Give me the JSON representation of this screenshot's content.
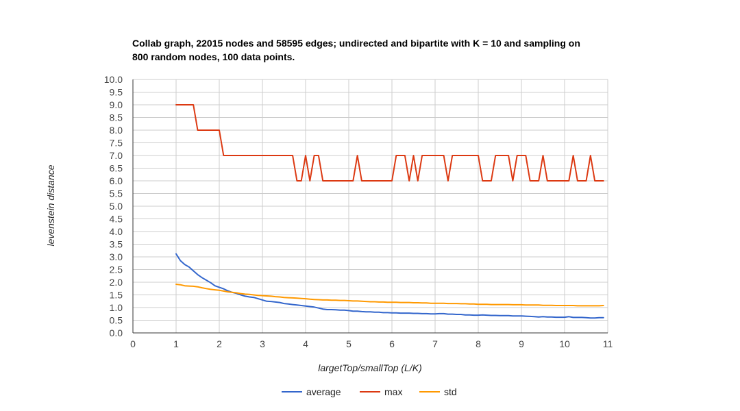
{
  "chart_data": {
    "type": "line",
    "title_lines": [
      "Collab graph, 22015 nodes and 58595 edges; undirected and bipartite with K = 10 and sampling on",
      "800 random nodes, 100 data points."
    ],
    "xlabel": "largetTop/smallTop (L/K)",
    "ylabel": "levenstein distance",
    "xlim": [
      0,
      11
    ],
    "ylim": [
      0,
      10
    ],
    "x_ticks": [
      "0",
      "1",
      "2",
      "3",
      "4",
      "5",
      "6",
      "7",
      "8",
      "9",
      "10",
      "11"
    ],
    "y_ticks": [
      "0.0",
      "0.5",
      "1.0",
      "1.5",
      "2.0",
      "2.5",
      "3.0",
      "3.5",
      "4.0",
      "4.5",
      "5.0",
      "5.5",
      "6.0",
      "6.5",
      "7.0",
      "7.5",
      "8.0",
      "8.5",
      "9.0",
      "9.5",
      "10.0"
    ],
    "grid": true,
    "legend_position": "bottom",
    "x": [
      1.0,
      1.1,
      1.2,
      1.3,
      1.4,
      1.5,
      1.6,
      1.7,
      1.8,
      1.9,
      2.0,
      2.1,
      2.2,
      2.3,
      2.4,
      2.5,
      2.6,
      2.7,
      2.8,
      2.9,
      3.0,
      3.1,
      3.2,
      3.3,
      3.4,
      3.5,
      3.6,
      3.7,
      3.8,
      3.9,
      4.0,
      4.1,
      4.2,
      4.3,
      4.4,
      4.5,
      4.6,
      4.7,
      4.8,
      4.9,
      5.0,
      5.1,
      5.2,
      5.3,
      5.4,
      5.5,
      5.6,
      5.7,
      5.8,
      5.9,
      6.0,
      6.1,
      6.2,
      6.3,
      6.4,
      6.5,
      6.6,
      6.7,
      6.8,
      6.9,
      7.0,
      7.1,
      7.2,
      7.3,
      7.4,
      7.5,
      7.6,
      7.7,
      7.8,
      7.9,
      8.0,
      8.1,
      8.2,
      8.3,
      8.4,
      8.5,
      8.6,
      8.7,
      8.8,
      8.9,
      9.0,
      9.1,
      9.2,
      9.3,
      9.4,
      9.5,
      9.6,
      9.7,
      9.8,
      9.9,
      10.0,
      10.1,
      10.2,
      10.3,
      10.4,
      10.5,
      10.6,
      10.7,
      10.8,
      10.9
    ],
    "series": [
      {
        "name": "average",
        "color": "#3366cc",
        "values": [
          3.12,
          2.85,
          2.7,
          2.6,
          2.45,
          2.3,
          2.18,
          2.08,
          1.98,
          1.86,
          1.8,
          1.74,
          1.66,
          1.6,
          1.56,
          1.5,
          1.45,
          1.42,
          1.4,
          1.35,
          1.3,
          1.25,
          1.24,
          1.22,
          1.2,
          1.16,
          1.14,
          1.12,
          1.1,
          1.08,
          1.06,
          1.04,
          1.02,
          0.98,
          0.94,
          0.92,
          0.92,
          0.91,
          0.9,
          0.9,
          0.88,
          0.86,
          0.86,
          0.84,
          0.83,
          0.83,
          0.82,
          0.82,
          0.8,
          0.8,
          0.79,
          0.79,
          0.78,
          0.78,
          0.78,
          0.77,
          0.77,
          0.76,
          0.76,
          0.75,
          0.75,
          0.76,
          0.76,
          0.74,
          0.74,
          0.73,
          0.73,
          0.71,
          0.71,
          0.7,
          0.7,
          0.71,
          0.7,
          0.69,
          0.69,
          0.68,
          0.68,
          0.68,
          0.67,
          0.67,
          0.67,
          0.66,
          0.65,
          0.64,
          0.63,
          0.64,
          0.63,
          0.63,
          0.62,
          0.62,
          0.62,
          0.64,
          0.61,
          0.61,
          0.61,
          0.6,
          0.59,
          0.59,
          0.6,
          0.6
        ]
      },
      {
        "name": "max",
        "color": "#dc3912",
        "values": [
          9,
          9,
          9,
          9,
          9,
          8,
          8,
          8,
          8,
          8,
          8,
          7,
          7,
          7,
          7,
          7,
          7,
          7,
          7,
          7,
          7,
          7,
          7,
          7,
          7,
          7,
          7,
          7,
          6,
          6,
          7,
          6,
          7,
          7,
          6,
          6,
          6,
          6,
          6,
          6,
          6,
          6,
          7,
          6,
          6,
          6,
          6,
          6,
          6,
          6,
          6,
          7,
          7,
          7,
          6,
          7,
          6,
          7,
          7,
          7,
          7,
          7,
          7,
          6,
          7,
          7,
          7,
          7,
          7,
          7,
          7,
          6,
          6,
          6,
          7,
          7,
          7,
          7,
          6,
          7,
          7,
          7,
          6,
          6,
          6,
          7,
          6,
          6,
          6,
          6,
          6,
          6,
          7,
          6,
          6,
          6,
          7,
          6,
          6,
          6
        ]
      },
      {
        "name": "std",
        "color": "#ff9900",
        "values": [
          1.92,
          1.9,
          1.86,
          1.85,
          1.84,
          1.82,
          1.78,
          1.75,
          1.72,
          1.7,
          1.68,
          1.65,
          1.62,
          1.6,
          1.58,
          1.55,
          1.53,
          1.52,
          1.5,
          1.48,
          1.47,
          1.46,
          1.45,
          1.43,
          1.42,
          1.4,
          1.39,
          1.38,
          1.37,
          1.36,
          1.35,
          1.33,
          1.32,
          1.31,
          1.3,
          1.3,
          1.29,
          1.29,
          1.28,
          1.28,
          1.27,
          1.26,
          1.26,
          1.25,
          1.24,
          1.23,
          1.23,
          1.22,
          1.22,
          1.21,
          1.21,
          1.21,
          1.2,
          1.2,
          1.2,
          1.19,
          1.19,
          1.18,
          1.18,
          1.17,
          1.17,
          1.17,
          1.17,
          1.16,
          1.16,
          1.16,
          1.15,
          1.15,
          1.14,
          1.14,
          1.13,
          1.13,
          1.13,
          1.12,
          1.12,
          1.12,
          1.12,
          1.12,
          1.11,
          1.11,
          1.11,
          1.1,
          1.1,
          1.1,
          1.1,
          1.09,
          1.09,
          1.09,
          1.08,
          1.08,
          1.08,
          1.08,
          1.08,
          1.07,
          1.07,
          1.07,
          1.07,
          1.07,
          1.07,
          1.08
        ]
      }
    ]
  }
}
